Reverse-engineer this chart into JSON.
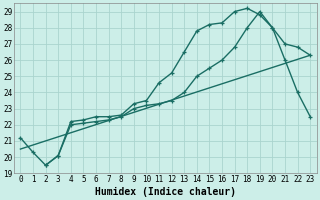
{
  "title": "",
  "xlabel": "Humidex (Indice chaleur)",
  "bg_color": "#cceee8",
  "grid_color": "#aad4ce",
  "line_color": "#1a6e64",
  "xlim": [
    -0.5,
    23.5
  ],
  "ylim": [
    19.0,
    29.5
  ],
  "yticks": [
    19,
    20,
    21,
    22,
    23,
    24,
    25,
    26,
    27,
    28,
    29
  ],
  "xticks": [
    0,
    1,
    2,
    3,
    4,
    5,
    6,
    7,
    8,
    9,
    10,
    11,
    12,
    13,
    14,
    15,
    16,
    17,
    18,
    19,
    20,
    21,
    22,
    23
  ],
  "line1_x": [
    0,
    1,
    2,
    3,
    4,
    5,
    6,
    7,
    8,
    9,
    10,
    11,
    12,
    13,
    14,
    15,
    16,
    17,
    18,
    19,
    20,
    21,
    22,
    23
  ],
  "line1_y": [
    21.2,
    20.3,
    19.5,
    20.1,
    22.2,
    22.3,
    22.5,
    22.5,
    22.6,
    23.3,
    23.5,
    24.6,
    25.2,
    26.5,
    27.8,
    28.2,
    28.3,
    29.0,
    29.2,
    28.8,
    28.0,
    27.0,
    26.8,
    26.3
  ],
  "line2_x": [
    2,
    3,
    4,
    5,
    6,
    7,
    8,
    9,
    10,
    11,
    12,
    13,
    14,
    15,
    16,
    17,
    18,
    19,
    20,
    21,
    22,
    23
  ],
  "line2_y": [
    19.5,
    20.1,
    22.0,
    22.1,
    22.2,
    22.3,
    22.5,
    23.0,
    23.2,
    23.3,
    23.5,
    24.0,
    25.0,
    25.5,
    26.0,
    26.8,
    28.0,
    29.0,
    28.0,
    26.0,
    24.0,
    22.5
  ],
  "line3_x": [
    0,
    23
  ],
  "line3_y": [
    20.5,
    26.3
  ],
  "marker_size": 3.5,
  "line_width": 1.0,
  "font_family": "monospace",
  "xlabel_fontsize": 7,
  "tick_fontsize": 5.5
}
